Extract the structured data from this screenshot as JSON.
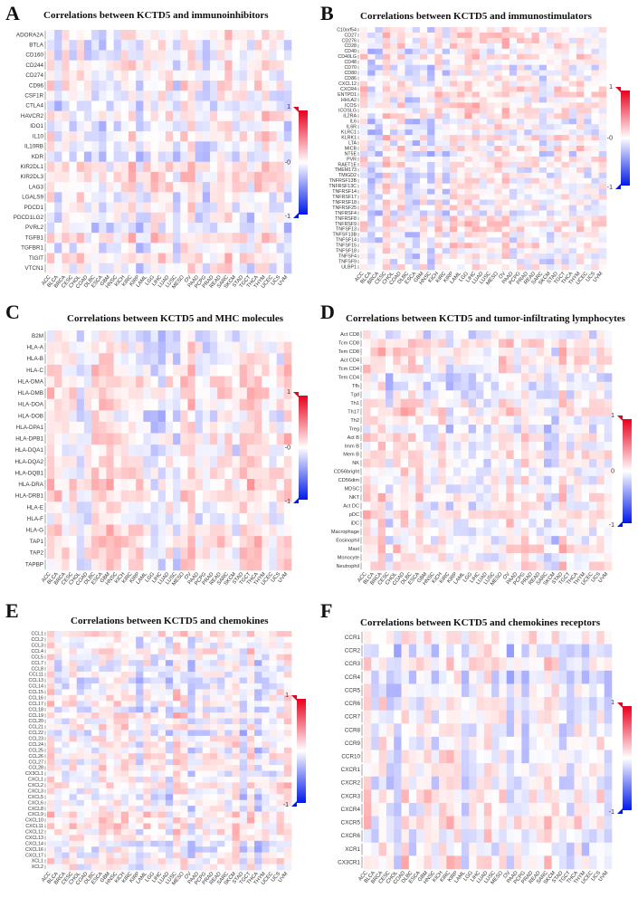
{
  "legend_colors": {
    "positive": "#e8001c",
    "neutral": "#ffffff",
    "negative": "#0019e8",
    "tick_marker_pos": "#e8001c",
    "tick_marker_neg": "#0019e8"
  },
  "chart_data": [
    {
      "type": "heatmap",
      "panel_label": "A",
      "title": "Correlations between KCTD5 and immunoinhibitors",
      "rows": [
        "ADORA2A",
        "BTLA",
        "CD160",
        "CD244",
        "CD274",
        "CD96",
        "CSF1R",
        "CTLA4",
        "HAVCR2",
        "IDO1",
        "IL10",
        "IL10RB",
        "KDR",
        "KIR2DL1",
        "KIR2DL3",
        "LAG3",
        "LGALS9",
        "PDCD1",
        "PDCD1LG2",
        "PVRL2",
        "TGFB1",
        "TGFBR1",
        "TIGIT",
        "VTCN1"
      ],
      "columns": [
        "ACC",
        "BLCA",
        "BRCA",
        "CESC",
        "CHOL",
        "COAD",
        "DLBC",
        "ESCA",
        "GBM",
        "HNSC",
        "KICH",
        "KIRC",
        "KIRP",
        "LAML",
        "LGG",
        "LIHC",
        "LUAD",
        "LUSC",
        "MESO",
        "OV",
        "PAAD",
        "PCPG",
        "PRAD",
        "READ",
        "SARC",
        "SKCM",
        "STAD",
        "TGCT",
        "THCA",
        "THYM",
        "UCEC",
        "UCS",
        "UVM"
      ],
      "colorbar": {
        "max": "1",
        "mid": "-0",
        "min": "-1"
      }
    },
    {
      "type": "heatmap",
      "panel_label": "B",
      "title": "Correlations between KCTD5 and immunostimulators",
      "rows": [
        "C10orf54",
        "CD27",
        "CD276",
        "CD28",
        "CD40",
        "CD40LG",
        "CD48",
        "CD70",
        "CD80",
        "CD86",
        "CXCL12",
        "CXCR4",
        "ENTPD1",
        "HHLA2",
        "ICOS",
        "ICOSLG",
        "IL2RA",
        "IL6",
        "IL6R",
        "KLRC1",
        "KLRK1",
        "LTA",
        "MICB",
        "NT5E",
        "PVR",
        "RAET1E",
        "TMEM173",
        "TMIGD2",
        "TNFRSF13B",
        "TNFRSF13C",
        "TNFRSF14",
        "TNFRSF17",
        "TNFRSF18",
        "TNFRSF25",
        "TNFRSF4",
        "TNFRSF8",
        "TNFRSF9",
        "TNFSF13",
        "TNFSF13B",
        "TNFSF14",
        "TNFSF15",
        "TNFSF18",
        "TNFSF4",
        "TNFSF9",
        "ULBP1"
      ],
      "columns": [
        "ACC",
        "BLCA",
        "BRCA",
        "CESC",
        "CHOL",
        "COAD",
        "DLBC",
        "ESCA",
        "GBM",
        "HNSC",
        "KICH",
        "KIRC",
        "KIRP",
        "LAML",
        "LGG",
        "LIHC",
        "LUAD",
        "LUSC",
        "MESO",
        "OV",
        "PAAD",
        "PCPG",
        "PRAD",
        "READ",
        "SARC",
        "SKCM",
        "STAD",
        "TGCT",
        "THCA",
        "THYM",
        "UCEC",
        "UCS",
        "UVM"
      ],
      "colorbar": {
        "max": "1",
        "mid": "-0",
        "min": "-1"
      }
    },
    {
      "type": "heatmap",
      "panel_label": "C",
      "title": "Correlations between KCTD5 and MHC molecules",
      "rows": [
        "B2M",
        "HLA-A",
        "HLA-B",
        "HLA-C",
        "HLA-DMA",
        "HLA-DMB",
        "HLA-DOA",
        "HLA-DOB",
        "HLA-DPA1",
        "HLA-DPB1",
        "HLA-DQA1",
        "HLA-DQA2",
        "HLA-DQB1",
        "HLA-DRA",
        "HLA-DRB1",
        "HLA-E",
        "HLA-F",
        "HLA-G",
        "TAP1",
        "TAP2",
        "TAPBP"
      ],
      "columns": [
        "ACC",
        "BLCA",
        "BRCA",
        "CESC",
        "CHOL",
        "COAD",
        "DLBC",
        "ESCA",
        "GBM",
        "HNSC",
        "KICH",
        "KIRC",
        "KIRP",
        "LAML",
        "LGG",
        "LIHC",
        "LUAD",
        "LUSC",
        "MESO",
        "OV",
        "PAAD",
        "PCPG",
        "PRAD",
        "READ",
        "SARC",
        "SKCM",
        "STAD",
        "TGCT",
        "THCA",
        "THYM",
        "UCEC",
        "UCS",
        "UVM"
      ],
      "colorbar": {
        "max": "1",
        "mid": "-0",
        "min": "-1"
      }
    },
    {
      "type": "heatmap",
      "panel_label": "D",
      "title": "Correlations between KCTD5 and tumor-infiltrating lymphocytes",
      "rows": [
        "Act CD8",
        "Tcm CD8",
        "Tem CD8",
        "Act CD4",
        "Tcm CD4",
        "Tem CD4",
        "Tfh",
        "Tgd",
        "Th1",
        "Th17",
        "Th2",
        "Treg",
        "Act B",
        "Imm B",
        "Mem B",
        "NK",
        "CD56bright",
        "CD56dim",
        "MDSC",
        "NKT",
        "Act DC",
        "pDC",
        "iDC",
        "Macrophage",
        "Eosinophil",
        "Mast",
        "Monocyte",
        "Neutrophil"
      ],
      "columns": [
        "ACC",
        "BLCA",
        "BRCA",
        "CESC",
        "CHOL",
        "COAD",
        "DLBC",
        "ESCA",
        "GBM",
        "HNSC",
        "KICH",
        "KIRC",
        "KIRP",
        "LAML",
        "LGG",
        "LIHC",
        "LUAD",
        "LUSC",
        "MESO",
        "OV",
        "PAAD",
        "PCPG",
        "PRAD",
        "READ",
        "SARC",
        "SKCM",
        "STAD",
        "TGCT",
        "THCA",
        "THYM",
        "UCEC",
        "UCS",
        "UVM"
      ],
      "colorbar": {
        "max": "1",
        "mid": "0",
        "min": "-1"
      }
    },
    {
      "type": "heatmap",
      "panel_label": "E",
      "title": "Correlations between KCTD5 and chemokines",
      "rows": [
        "CCL1",
        "CCL2",
        "CCL3",
        "CCL4",
        "CCL5",
        "CCL7",
        "CCL8",
        "CCL11",
        "CCL13",
        "CCL14",
        "CCL15",
        "CCL16",
        "CCL17",
        "CCL18",
        "CCL19",
        "CCL20",
        "CCL21",
        "CCL22",
        "CCL23",
        "CCL24",
        "CCL25",
        "CCL26",
        "CCL27",
        "CCL28",
        "CX3CL1",
        "CXCL1",
        "CXCL2",
        "CXCL3",
        "CXCL5",
        "CXCL6",
        "CXCL8",
        "CXCL9",
        "CXCL10",
        "CXCL11",
        "CXCL12",
        "CXCL13",
        "CXCL14",
        "CXCL16",
        "CXCL17",
        "XCL1",
        "XCL2"
      ],
      "columns": [
        "ACC",
        "BLCA",
        "BRCA",
        "CESC",
        "CHOL",
        "COAD",
        "DLBC",
        "ESCA",
        "GBM",
        "HNSC",
        "KICH",
        "KIRC",
        "KIRP",
        "LAML",
        "LGG",
        "LIHC",
        "LUAD",
        "LUSC",
        "MESO",
        "OV",
        "PAAD",
        "PCPG",
        "PRAD",
        "READ",
        "SARC",
        "SKCM",
        "STAD",
        "TGCT",
        "THCA",
        "THYM",
        "UCEC",
        "UCS",
        "UVM"
      ],
      "colorbar": {
        "max": "1",
        "mid": "",
        "min": "-1"
      }
    },
    {
      "type": "heatmap",
      "panel_label": "F",
      "title": "Correlations between KCTD5 and chemokines receptors",
      "rows": [
        "CCR1",
        "CCR2",
        "CCR3",
        "CCR4",
        "CCR5",
        "CCR6",
        "CCR7",
        "CCR8",
        "CCR9",
        "CCR10",
        "CXCR1",
        "CXCR2",
        "CXCR3",
        "CXCR4",
        "CXCR5",
        "CXCR6",
        "XCR1",
        "CX3CR1"
      ],
      "columns": [
        "ACC",
        "BLCA",
        "BRCA",
        "CESC",
        "CHOL",
        "COAD",
        "DLBC",
        "ESCA",
        "GBM",
        "HNSC",
        "KICH",
        "KIRC",
        "KIRP",
        "LAML",
        "LGG",
        "LIHC",
        "LUAD",
        "LUSC",
        "MESO",
        "OV",
        "PAAD",
        "PCPG",
        "PRAD",
        "READ",
        "SARC",
        "SKCM",
        "STAD",
        "TGCT",
        "THCA",
        "THYM",
        "UCEC",
        "UCS",
        "UVM"
      ],
      "colorbar": {
        "max": "1",
        "mid": "",
        "min": "-1"
      }
    }
  ]
}
